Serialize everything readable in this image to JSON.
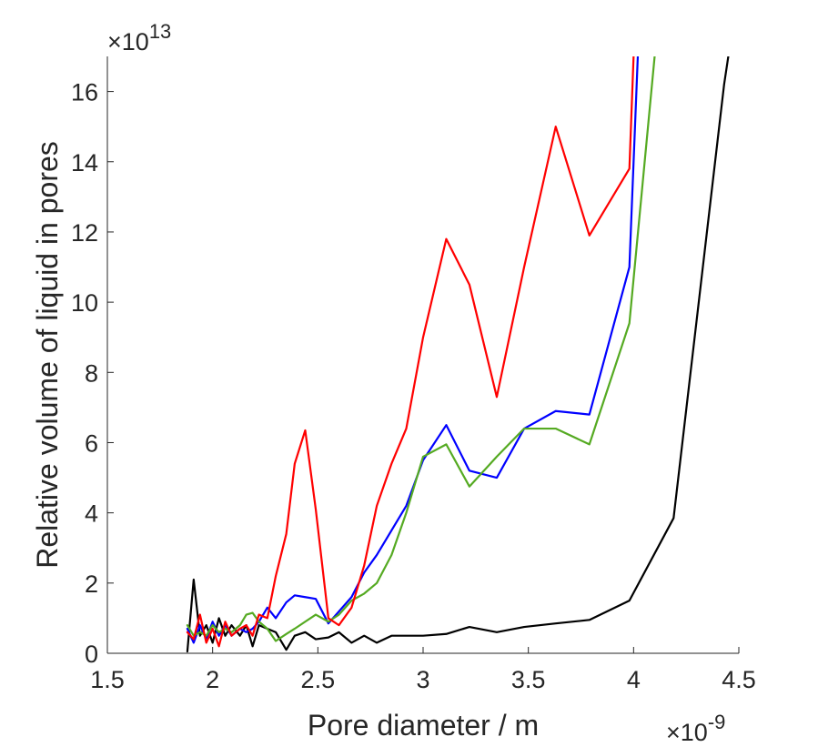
{
  "chart_data": {
    "type": "line",
    "xlabel": "Pore diameter / m",
    "ylabel": "Relative volume of liquid in pores",
    "x_exponent_label": {
      "base": "×10",
      "exp": "-9"
    },
    "y_exponent_label": {
      "base": "×10",
      "exp": "13"
    },
    "xlim": [
      1.5,
      4.5
    ],
    "ylim": [
      0,
      17
    ],
    "x_ticks": [
      1.5,
      2,
      2.5,
      3,
      3.5,
      4,
      4.5
    ],
    "x_tick_labels": [
      "1.5",
      "2",
      "2.5",
      "3",
      "3.5",
      "4",
      "4.5"
    ],
    "y_ticks": [
      0,
      2,
      4,
      6,
      8,
      10,
      12,
      14,
      16
    ],
    "y_tick_labels": [
      "0",
      "2",
      "4",
      "6",
      "8",
      "10",
      "12",
      "14",
      "16"
    ],
    "grid": false,
    "legend": "none",
    "series": [
      {
        "color": "#000000",
        "x": [
          1.88,
          1.91,
          1.94,
          1.97,
          2.0,
          2.03,
          2.06,
          2.09,
          2.13,
          2.16,
          2.19,
          2.22,
          2.26,
          2.3,
          2.35,
          2.39,
          2.44,
          2.49,
          2.55,
          2.6,
          2.66,
          2.72,
          2.78,
          2.85,
          2.92,
          3.0,
          3.11,
          3.22,
          3.35,
          3.48,
          3.63,
          3.79,
          3.98,
          4.19,
          4.43,
          4.45
        ],
        "y": [
          0.05,
          2.1,
          0.5,
          0.8,
          0.3,
          1.0,
          0.5,
          0.8,
          0.5,
          0.8,
          0.2,
          0.8,
          0.7,
          0.6,
          0.1,
          0.5,
          0.6,
          0.4,
          0.45,
          0.6,
          0.3,
          0.5,
          0.3,
          0.5,
          0.5,
          0.5,
          0.55,
          0.75,
          0.6,
          0.75,
          0.85,
          0.95,
          1.5,
          3.85,
          16.2,
          17.0
        ]
      },
      {
        "color": "#0000ff",
        "x": [
          1.88,
          1.91,
          1.94,
          1.97,
          2.0,
          2.03,
          2.06,
          2.09,
          2.13,
          2.16,
          2.19,
          2.22,
          2.26,
          2.3,
          2.35,
          2.39,
          2.44,
          2.49,
          2.55,
          2.66,
          2.72,
          2.78,
          2.85,
          2.92,
          3.0,
          3.11,
          3.22,
          3.35,
          3.48,
          3.63,
          3.79,
          3.98,
          4.02
        ],
        "y": [
          0.7,
          0.3,
          0.8,
          0.4,
          0.9,
          0.5,
          0.8,
          0.5,
          0.7,
          0.6,
          0.7,
          0.9,
          1.3,
          1.0,
          1.45,
          1.65,
          1.6,
          1.55,
          0.85,
          1.6,
          2.3,
          2.8,
          3.5,
          4.2,
          5.5,
          6.5,
          5.2,
          5.0,
          6.4,
          6.9,
          6.8,
          11.0,
          17.0
        ]
      },
      {
        "color": "#55aa22",
        "x": [
          1.88,
          1.91,
          1.94,
          1.97,
          2.0,
          2.03,
          2.06,
          2.09,
          2.13,
          2.16,
          2.19,
          2.22,
          2.26,
          2.3,
          2.35,
          2.39,
          2.44,
          2.49,
          2.55,
          2.6,
          2.66,
          2.72,
          2.78,
          2.85,
          2.92,
          3.0,
          3.11,
          3.22,
          3.35,
          3.48,
          3.63,
          3.79,
          3.98,
          4.1
        ],
        "y": [
          0.8,
          0.5,
          0.6,
          0.5,
          0.8,
          0.6,
          0.7,
          0.6,
          0.8,
          1.1,
          1.15,
          0.9,
          0.7,
          0.35,
          0.55,
          0.7,
          0.9,
          1.1,
          0.9,
          1.1,
          1.5,
          1.7,
          2.0,
          2.8,
          4.0,
          5.6,
          5.95,
          4.75,
          5.6,
          6.4,
          6.4,
          5.95,
          9.4,
          17.0
        ]
      },
      {
        "color": "#ff0000",
        "x": [
          1.88,
          1.91,
          1.94,
          1.97,
          2.0,
          2.03,
          2.06,
          2.09,
          2.13,
          2.16,
          2.19,
          2.22,
          2.26,
          2.3,
          2.35,
          2.39,
          2.44,
          2.49,
          2.55,
          2.6,
          2.66,
          2.72,
          2.78,
          2.85,
          2.92,
          3.0,
          3.11,
          3.22,
          3.35,
          3.48,
          3.63,
          3.79,
          3.98,
          4.0
        ],
        "y": [
          0.6,
          0.4,
          1.1,
          0.3,
          0.7,
          0.2,
          0.9,
          0.5,
          0.7,
          0.8,
          0.5,
          1.1,
          1.0,
          2.2,
          3.4,
          5.4,
          6.35,
          4.1,
          1.0,
          0.8,
          1.3,
          2.5,
          4.2,
          5.4,
          6.4,
          9.0,
          11.8,
          10.5,
          7.3,
          11.0,
          15.0,
          11.9,
          13.8,
          17.0
        ]
      }
    ]
  }
}
